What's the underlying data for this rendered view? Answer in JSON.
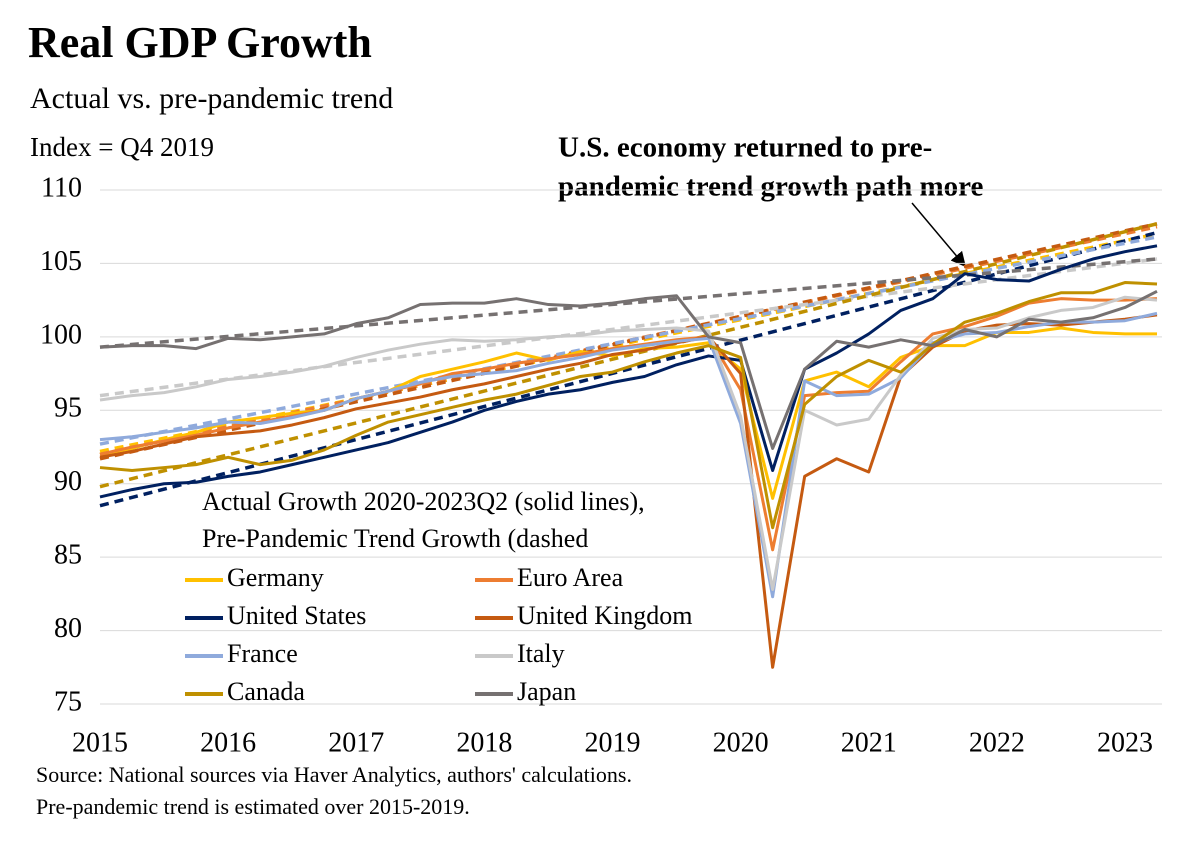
{
  "chart_data": {
    "type": "line",
    "title": "Real GDP Growth",
    "subtitle": "Actual vs. pre-pandemic trend",
    "y_label": "Index = Q4 2019",
    "annotation": [
      "U.S. economy returned to pre-",
      "pandemic trend growth path more"
    ],
    "legend_title": [
      "Actual Growth 2020-2023Q2 (solid lines),",
      "Pre-Pandemic Trend Growth (dashed"
    ],
    "source": [
      "Source: National sources via Haver Analytics, authors' calculations.",
      "Pre-pandemic trend is estimated over 2015-2019."
    ],
    "x": [
      2015,
      2015.25,
      2015.5,
      2015.75,
      2016,
      2016.25,
      2016.5,
      2016.75,
      2017,
      2017.25,
      2017.5,
      2017.75,
      2018,
      2018.25,
      2018.5,
      2018.75,
      2019,
      2019.25,
      2019.5,
      2019.75,
      2020,
      2020.25,
      2020.5,
      2020.75,
      2021,
      2021.25,
      2021.5,
      2021.75,
      2022,
      2022.25,
      2022.5,
      2022.75,
      2023,
      2023.25
    ],
    "trend_x": [
      2015,
      2023.25
    ],
    "xlim": [
      2015,
      2023.25
    ],
    "xticks": [
      2015,
      2016,
      2017,
      2018,
      2019,
      2020,
      2021,
      2022,
      2023
    ],
    "ylim": [
      75,
      110
    ],
    "yticks": [
      75,
      80,
      85,
      90,
      95,
      100,
      105,
      110
    ],
    "grid": true,
    "series": [
      {
        "name": "Germany",
        "color": "#ffc000",
        "trend": [
          92.2,
          107.0
        ],
        "values": [
          92.0,
          92.4,
          93.0,
          93.5,
          94.2,
          94.5,
          94.8,
          95.0,
          95.8,
          96.3,
          97.3,
          97.8,
          98.3,
          98.9,
          98.4,
          99.0,
          98.7,
          99.2,
          99.3,
          99.6,
          97.8,
          89.0,
          97.0,
          97.6,
          96.6,
          98.6,
          99.4,
          99.4,
          100.3,
          100.3,
          100.6,
          100.3,
          100.2,
          100.2
        ]
      },
      {
        "name": "Euro Area",
        "color": "#ed7d31",
        "trend": [
          92.0,
          107.5
        ],
        "values": [
          92.0,
          92.5,
          92.9,
          93.3,
          93.8,
          94.2,
          94.6,
          95.0,
          95.8,
          96.3,
          96.8,
          97.5,
          97.8,
          98.2,
          98.5,
          98.8,
          99.2,
          99.5,
          99.8,
          100.0,
          96.4,
          85.5,
          96.0,
          96.2,
          96.3,
          98.3,
          100.2,
          100.7,
          101.4,
          102.3,
          102.6,
          102.5,
          102.5,
          102.6
        ]
      },
      {
        "name": "United States",
        "color": "#002060",
        "trend": [
          88.5,
          107.1
        ],
        "values": [
          89.1,
          89.6,
          90.0,
          90.1,
          90.5,
          90.8,
          91.3,
          91.8,
          92.3,
          92.8,
          93.5,
          94.2,
          95.0,
          95.6,
          96.1,
          96.4,
          96.9,
          97.3,
          98.1,
          98.7,
          98.4,
          90.9,
          97.8,
          98.9,
          100.2,
          101.8,
          102.6,
          104.3,
          103.9,
          103.8,
          104.6,
          105.3,
          105.8,
          106.2
        ]
      },
      {
        "name": "United Kingdom",
        "color": "#c55a11",
        "trend": [
          91.7,
          107.7
        ],
        "values": [
          91.8,
          92.2,
          92.7,
          93.2,
          93.4,
          93.6,
          94.0,
          94.5,
          95.1,
          95.5,
          95.9,
          96.4,
          96.8,
          97.3,
          97.8,
          98.2,
          98.8,
          99.1,
          99.6,
          100.0,
          97.5,
          77.5,
          90.5,
          91.7,
          90.8,
          97.3,
          99.3,
          100.4,
          100.8,
          100.9,
          100.8,
          101.0,
          101.2,
          101.5
        ]
      },
      {
        "name": "France",
        "color": "#8faadc",
        "trend": [
          92.7,
          106.8
        ],
        "values": [
          93.0,
          93.2,
          93.5,
          93.8,
          94.2,
          94.1,
          94.5,
          95.0,
          95.8,
          96.3,
          96.9,
          97.3,
          97.5,
          97.7,
          98.2,
          98.6,
          99.1,
          99.4,
          99.7,
          99.9,
          94.1,
          82.3,
          97.0,
          96.0,
          96.1,
          97.2,
          99.6,
          100.2,
          100.3,
          100.7,
          101.0,
          101.0,
          101.1,
          101.6
        ]
      },
      {
        "name": "Italy",
        "color": "#c9c9c9",
        "trend": [
          96.0,
          105.3
        ],
        "values": [
          95.7,
          96.0,
          96.2,
          96.6,
          97.1,
          97.3,
          97.6,
          98.0,
          98.6,
          99.1,
          99.5,
          99.8,
          99.7,
          99.8,
          100.0,
          100.1,
          100.4,
          100.5,
          100.6,
          100.4,
          94.6,
          82.8,
          95.0,
          94.0,
          94.4,
          97.4,
          99.9,
          100.5,
          100.6,
          101.3,
          101.8,
          102.0,
          102.7,
          102.5
        ]
      },
      {
        "name": "Canada",
        "color": "#bf9000",
        "trend": [
          89.8,
          107.7
        ],
        "values": [
          91.1,
          90.9,
          91.1,
          91.3,
          91.8,
          91.3,
          91.6,
          92.3,
          93.3,
          94.2,
          94.7,
          95.2,
          95.7,
          96.1,
          96.7,
          97.3,
          97.6,
          98.3,
          98.9,
          99.4,
          98.6,
          87.0,
          95.4,
          97.3,
          98.4,
          97.6,
          99.5,
          101.0,
          101.6,
          102.4,
          103.0,
          103.0,
          103.7,
          103.6
        ]
      },
      {
        "name": "Japan",
        "color": "#767171",
        "trend": [
          99.3,
          105.3
        ],
        "values": [
          99.3,
          99.4,
          99.4,
          99.2,
          99.9,
          99.8,
          100.0,
          100.2,
          100.9,
          101.3,
          102.2,
          102.3,
          102.3,
          102.6,
          102.2,
          102.1,
          102.3,
          102.6,
          102.8,
          100.0,
          99.6,
          92.4,
          97.8,
          99.7,
          99.3,
          99.8,
          99.4,
          100.5,
          100.0,
          101.2,
          101.0,
          101.3,
          102.0,
          103.1
        ]
      }
    ]
  }
}
